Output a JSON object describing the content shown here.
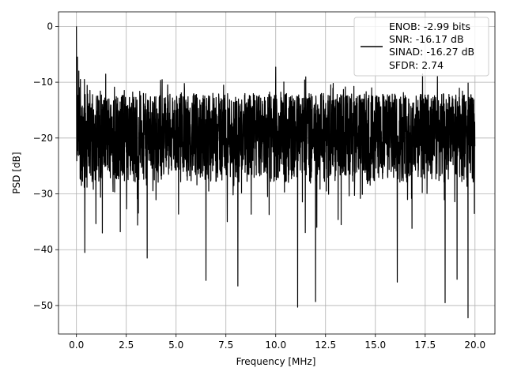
{
  "chart_data": {
    "type": "line",
    "title": "",
    "xlabel": "Frequency [MHz]",
    "ylabel": "PSD [dB]",
    "xlim": [
      -0.9,
      21.0
    ],
    "ylim": [
      -55.1,
      2.6
    ],
    "xticks": [
      0.0,
      2.5,
      5.0,
      7.5,
      10.0,
      12.5,
      15.0,
      17.5,
      20.0
    ],
    "xtick_labels": [
      "0.0",
      "2.5",
      "5.0",
      "7.5",
      "10.0",
      "12.5",
      "15.0",
      "17.5",
      "20.0"
    ],
    "yticks": [
      0,
      -10,
      -20,
      -30,
      -40,
      -50
    ],
    "ytick_labels": [
      "0",
      "−10",
      "−20",
      "−30",
      "−40",
      "−50"
    ],
    "grid": true,
    "legend_position": "top-right",
    "legend_lines": [
      "ENOB: -2.99 bits",
      "SNR: -16.17 dB",
      "SINAD: -16.27 dB",
      "SFDR: 2.74"
    ],
    "series": [
      {
        "color": "#000000",
        "x_range": [
          0.0,
          20.0
        ],
        "noise_band": [
          -28,
          -12
        ],
        "peaks": [
          {
            "x": 0.0,
            "y": 0.0
          },
          {
            "x": 0.05,
            "y": -5.5
          },
          {
            "x": 0.12,
            "y": -8.0
          },
          {
            "x": 0.2,
            "y": -9.5
          },
          {
            "x": 0.25,
            "y": -28.5
          },
          {
            "x": 0.4,
            "y": -9.5
          },
          {
            "x": 0.42,
            "y": -40.5
          },
          {
            "x": 1.3,
            "y": -37.0
          },
          {
            "x": 3.55,
            "y": -41.5
          },
          {
            "x": 6.5,
            "y": -45.5
          },
          {
            "x": 8.1,
            "y": -46.5
          },
          {
            "x": 10.0,
            "y": -7.3
          },
          {
            "x": 11.1,
            "y": -50.3
          },
          {
            "x": 12.0,
            "y": -49.3
          },
          {
            "x": 16.1,
            "y": -45.8
          },
          {
            "x": 18.5,
            "y": -49.5
          },
          {
            "x": 19.1,
            "y": -45.3
          },
          {
            "x": 19.65,
            "y": -52.2
          }
        ]
      }
    ]
  }
}
